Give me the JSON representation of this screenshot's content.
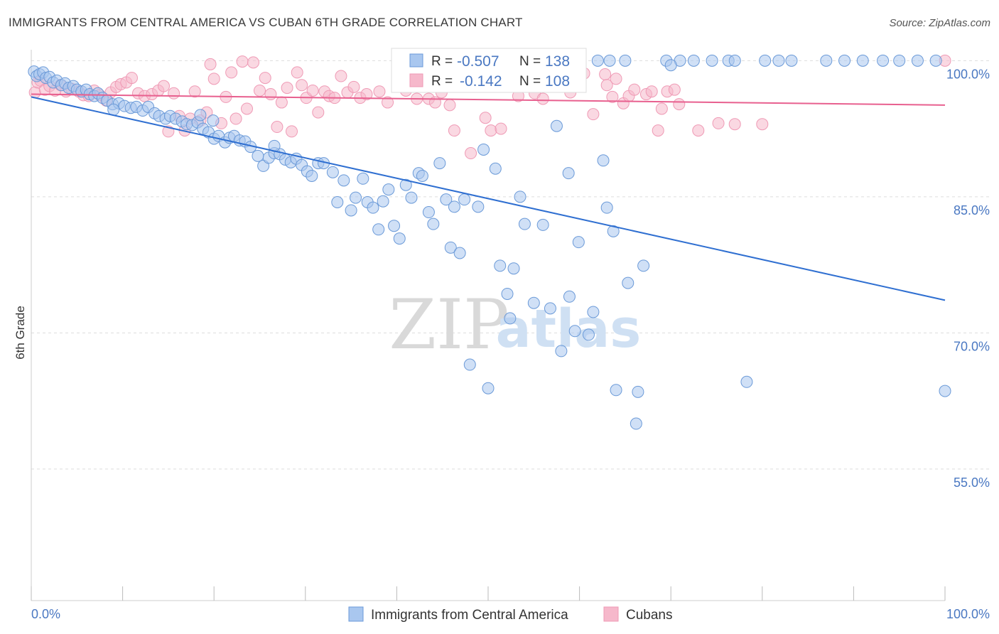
{
  "title": "IMMIGRANTS FROM CENTRAL AMERICA VS CUBAN 6TH GRADE CORRELATION CHART",
  "source": "Source: ZipAtlas.com",
  "watermark": {
    "zip": "ZIP",
    "atlas": "atlas"
  },
  "colors": {
    "blue_fill": "#a9c7ef",
    "blue_stroke": "#6b9ad8",
    "blue_line": "#2f6fd1",
    "pink_fill": "#f6b8cb",
    "pink_stroke": "#ef9ab5",
    "pink_line": "#e8608f",
    "tick_label": "#4a78c2",
    "grid": "#dddddd"
  },
  "legend_box": {
    "rows": [
      {
        "r_label": "R = ",
        "r_value": "-0.507",
        "n_label": "N = ",
        "n_value": "138",
        "color": "blue"
      },
      {
        "r_label": "R = ",
        "r_value": "-0.142",
        "n_label": "N = ",
        "n_value": "108",
        "color": "pink"
      }
    ]
  },
  "bottom_legend": [
    {
      "label": "Immigrants from Central America",
      "color": "blue"
    },
    {
      "label": "Cubans",
      "color": "pink"
    }
  ],
  "chart_data": {
    "type": "scatter",
    "title": "IMMIGRANTS FROM CENTRAL AMERICA VS CUBAN 6TH GRADE CORRELATION CHART",
    "xlabel": "",
    "ylabel": "6th Grade",
    "x_tick_labels": [
      "0.0%",
      "100.0%"
    ],
    "y_tick_labels": [
      "100.0%",
      "85.0%",
      "70.0%",
      "55.0%"
    ],
    "y_ticks": [
      100,
      85,
      70,
      55
    ],
    "xlim": [
      0,
      100
    ],
    "ylim": [
      40.5,
      101.2
    ],
    "grid": true,
    "legend_position": "top-center",
    "series": [
      {
        "name": "Immigrants from Central America",
        "color": "blue",
        "trend": {
          "x": [
            0,
            100
          ],
          "y": [
            96.0,
            73.6
          ]
        },
        "points": [
          [
            0.3,
            98.8
          ],
          [
            0.6,
            98.3
          ],
          [
            0.9,
            98.5
          ],
          [
            1.3,
            98.7
          ],
          [
            1.6,
            98.1
          ],
          [
            2.0,
            98.2
          ],
          [
            2.4,
            97.6
          ],
          [
            2.8,
            97.8
          ],
          [
            3.3,
            97.3
          ],
          [
            3.7,
            97.5
          ],
          [
            4.1,
            97.0
          ],
          [
            4.6,
            97.2
          ],
          [
            5.0,
            96.8
          ],
          [
            5.5,
            96.6
          ],
          [
            6.0,
            96.8
          ],
          [
            6.4,
            96.3
          ],
          [
            6.9,
            96.1
          ],
          [
            7.3,
            96.4
          ],
          [
            7.8,
            95.9
          ],
          [
            8.3,
            95.6
          ],
          [
            8.9,
            95.2
          ],
          [
            9.6,
            95.3
          ],
          [
            10.2,
            95.0
          ],
          [
            10.9,
            94.8
          ],
          [
            11.5,
            94.9
          ],
          [
            12.2,
            94.5
          ],
          [
            12.8,
            94.9
          ],
          [
            13.5,
            94.2
          ],
          [
            14.0,
            93.9
          ],
          [
            14.7,
            93.6
          ],
          [
            15.2,
            93.9
          ],
          [
            15.8,
            93.6
          ],
          [
            16.5,
            93.3
          ],
          [
            17.0,
            93.0
          ],
          [
            17.6,
            92.9
          ],
          [
            18.2,
            93.2
          ],
          [
            18.8,
            92.5
          ],
          [
            19.4,
            92.1
          ],
          [
            20.0,
            91.4
          ],
          [
            20.5,
            91.7
          ],
          [
            21.2,
            91.0
          ],
          [
            21.7,
            91.5
          ],
          [
            22.2,
            91.7
          ],
          [
            22.8,
            91.2
          ],
          [
            23.4,
            91.1
          ],
          [
            24.0,
            90.5
          ],
          [
            24.8,
            89.5
          ],
          [
            25.4,
            88.4
          ],
          [
            26.0,
            89.3
          ],
          [
            26.6,
            89.8
          ],
          [
            27.2,
            89.7
          ],
          [
            27.8,
            89.1
          ],
          [
            28.4,
            88.8
          ],
          [
            29.0,
            89.2
          ],
          [
            29.6,
            88.5
          ],
          [
            30.2,
            87.8
          ],
          [
            30.7,
            87.3
          ],
          [
            31.4,
            88.7
          ],
          [
            32.0,
            88.7
          ],
          [
            33.0,
            87.7
          ],
          [
            33.5,
            84.4
          ],
          [
            34.2,
            86.8
          ],
          [
            35.0,
            83.5
          ],
          [
            35.5,
            84.9
          ],
          [
            36.3,
            87.0
          ],
          [
            36.8,
            84.4
          ],
          [
            37.4,
            83.8
          ],
          [
            38.0,
            81.4
          ],
          [
            38.5,
            84.5
          ],
          [
            39.1,
            85.8
          ],
          [
            39.7,
            81.8
          ],
          [
            40.3,
            80.4
          ],
          [
            41.0,
            86.3
          ],
          [
            41.6,
            84.9
          ],
          [
            42.4,
            87.6
          ],
          [
            42.8,
            87.3
          ],
          [
            43.5,
            83.3
          ],
          [
            44.0,
            82.0
          ],
          [
            44.7,
            88.7
          ],
          [
            45.4,
            84.7
          ],
          [
            45.9,
            79.4
          ],
          [
            46.3,
            83.9
          ],
          [
            46.9,
            78.8
          ],
          [
            47.4,
            84.7
          ],
          [
            48.0,
            66.5
          ],
          [
            48.6,
            100.0
          ],
          [
            48.9,
            83.9
          ],
          [
            49.5,
            90.2
          ],
          [
            50.0,
            63.9
          ],
          [
            50.8,
            88.1
          ],
          [
            51.3,
            77.4
          ],
          [
            52.1,
            74.3
          ],
          [
            52.4,
            71.6
          ],
          [
            52.8,
            77.1
          ],
          [
            53.5,
            85.0
          ],
          [
            54.0,
            82.0
          ],
          [
            55.0,
            73.3
          ],
          [
            55.5,
            99.8
          ],
          [
            56.0,
            81.9
          ],
          [
            56.8,
            72.7
          ],
          [
            57.5,
            92.8
          ],
          [
            58.0,
            68.0
          ],
          [
            58.8,
            87.6
          ],
          [
            58.9,
            74.0
          ],
          [
            59.5,
            70.2
          ],
          [
            59.9,
            80.0
          ],
          [
            61.0,
            69.8
          ],
          [
            61.5,
            72.3
          ],
          [
            62.0,
            100.0
          ],
          [
            62.6,
            89.0
          ],
          [
            63.0,
            83.8
          ],
          [
            63.3,
            100.0
          ],
          [
            63.7,
            81.2
          ],
          [
            64.0,
            63.7
          ],
          [
            65.0,
            100.0
          ],
          [
            65.3,
            75.5
          ],
          [
            66.2,
            60.0
          ],
          [
            66.4,
            63.5
          ],
          [
            67.0,
            77.4
          ],
          [
            69.5,
            100.0
          ],
          [
            71.0,
            100.0
          ],
          [
            72.5,
            100.0
          ],
          [
            74.5,
            100.0
          ],
          [
            76.3,
            100.0
          ],
          [
            77.0,
            100.0
          ],
          [
            78.3,
            64.6
          ],
          [
            80.3,
            100.0
          ],
          [
            81.8,
            100.0
          ],
          [
            83.2,
            100.0
          ],
          [
            87.0,
            100.0
          ],
          [
            89.0,
            100.0
          ],
          [
            91.0,
            100.0
          ],
          [
            93.2,
            100.0
          ],
          [
            95.0,
            100.0
          ],
          [
            97.0,
            100.0
          ],
          [
            100.0,
            63.6
          ],
          [
            99.0,
            100.0
          ],
          [
            70.0,
            99.5
          ],
          [
            18.5,
            94.0
          ],
          [
            19.9,
            93.4
          ],
          [
            26.6,
            90.6
          ],
          [
            9.0,
            94.6
          ]
        ]
      },
      {
        "name": "Cubans",
        "color": "pink",
        "trend": {
          "x": [
            0,
            100
          ],
          "y": [
            96.3,
            95.1
          ]
        },
        "points": [
          [
            0.4,
            96.5
          ],
          [
            0.7,
            97.6
          ],
          [
            1.0,
            97.8
          ],
          [
            1.5,
            96.8
          ],
          [
            2.0,
            97.2
          ],
          [
            2.6,
            96.7
          ],
          [
            3.2,
            97.3
          ],
          [
            3.8,
            96.6
          ],
          [
            4.4,
            96.9
          ],
          [
            5.2,
            96.6
          ],
          [
            5.7,
            96.2
          ],
          [
            6.3,
            96.1
          ],
          [
            6.9,
            96.7
          ],
          [
            7.5,
            96.2
          ],
          [
            8.2,
            95.6
          ],
          [
            8.7,
            96.5
          ],
          [
            9.3,
            97.1
          ],
          [
            9.8,
            97.4
          ],
          [
            10.4,
            97.6
          ],
          [
            11.0,
            98.1
          ],
          [
            11.7,
            96.4
          ],
          [
            12.4,
            96.1
          ],
          [
            13.2,
            96.3
          ],
          [
            13.9,
            96.7
          ],
          [
            14.5,
            97.2
          ],
          [
            15.0,
            92.2
          ],
          [
            15.6,
            96.4
          ],
          [
            16.2,
            93.9
          ],
          [
            16.8,
            92.3
          ],
          [
            17.4,
            93.6
          ],
          [
            17.9,
            96.6
          ],
          [
            18.5,
            93.4
          ],
          [
            19.2,
            94.3
          ],
          [
            19.6,
            99.6
          ],
          [
            20.0,
            98.0
          ],
          [
            20.8,
            93.1
          ],
          [
            21.3,
            96.0
          ],
          [
            21.9,
            98.7
          ],
          [
            22.4,
            93.6
          ],
          [
            23.1,
            99.9
          ],
          [
            23.6,
            94.7
          ],
          [
            24.3,
            99.8
          ],
          [
            25.0,
            96.7
          ],
          [
            25.6,
            98.1
          ],
          [
            26.2,
            96.3
          ],
          [
            26.9,
            92.7
          ],
          [
            27.4,
            95.4
          ],
          [
            28.0,
            97.0
          ],
          [
            28.5,
            92.2
          ],
          [
            29.1,
            98.7
          ],
          [
            29.6,
            97.3
          ],
          [
            30.1,
            95.9
          ],
          [
            30.8,
            96.7
          ],
          [
            31.4,
            94.3
          ],
          [
            32.1,
            96.6
          ],
          [
            32.6,
            96.1
          ],
          [
            33.2,
            95.9
          ],
          [
            33.9,
            98.3
          ],
          [
            34.6,
            96.5
          ],
          [
            35.3,
            97.1
          ],
          [
            36.0,
            95.9
          ],
          [
            36.7,
            96.3
          ],
          [
            38.1,
            96.6
          ],
          [
            39.0,
            95.4
          ],
          [
            40.4,
            98.1
          ],
          [
            41.0,
            96.7
          ],
          [
            42.2,
            95.8
          ],
          [
            43.5,
            95.8
          ],
          [
            44.2,
            95.4
          ],
          [
            44.9,
            96.5
          ],
          [
            45.8,
            95.1
          ],
          [
            46.3,
            92.3
          ],
          [
            47.2,
            98.6
          ],
          [
            48.1,
            89.8
          ],
          [
            49.0,
            98.4
          ],
          [
            49.7,
            93.7
          ],
          [
            50.3,
            92.3
          ],
          [
            50.6,
            98.3
          ],
          [
            51.4,
            92.5
          ],
          [
            52.0,
            97.8
          ],
          [
            53.3,
            96.1
          ],
          [
            54.5,
            99.3
          ],
          [
            55.1,
            96.4
          ],
          [
            56.0,
            95.8
          ],
          [
            57.2,
            97.3
          ],
          [
            58.2,
            98.5
          ],
          [
            59.0,
            96.5
          ],
          [
            60.5,
            98.6
          ],
          [
            61.5,
            94.1
          ],
          [
            62.8,
            98.5
          ],
          [
            63.0,
            97.3
          ],
          [
            63.6,
            96.0
          ],
          [
            64.0,
            98.0
          ],
          [
            64.8,
            95.3
          ],
          [
            65.4,
            96.1
          ],
          [
            66.0,
            96.8
          ],
          [
            67.3,
            96.3
          ],
          [
            67.9,
            96.6
          ],
          [
            68.6,
            92.3
          ],
          [
            69.0,
            94.7
          ],
          [
            69.6,
            96.6
          ],
          [
            70.4,
            96.8
          ],
          [
            70.9,
            95.2
          ],
          [
            73.0,
            92.3
          ],
          [
            75.2,
            93.1
          ],
          [
            77.0,
            93.0
          ],
          [
            80.0,
            93.0
          ],
          [
            100.0,
            100.0
          ]
        ]
      }
    ]
  }
}
